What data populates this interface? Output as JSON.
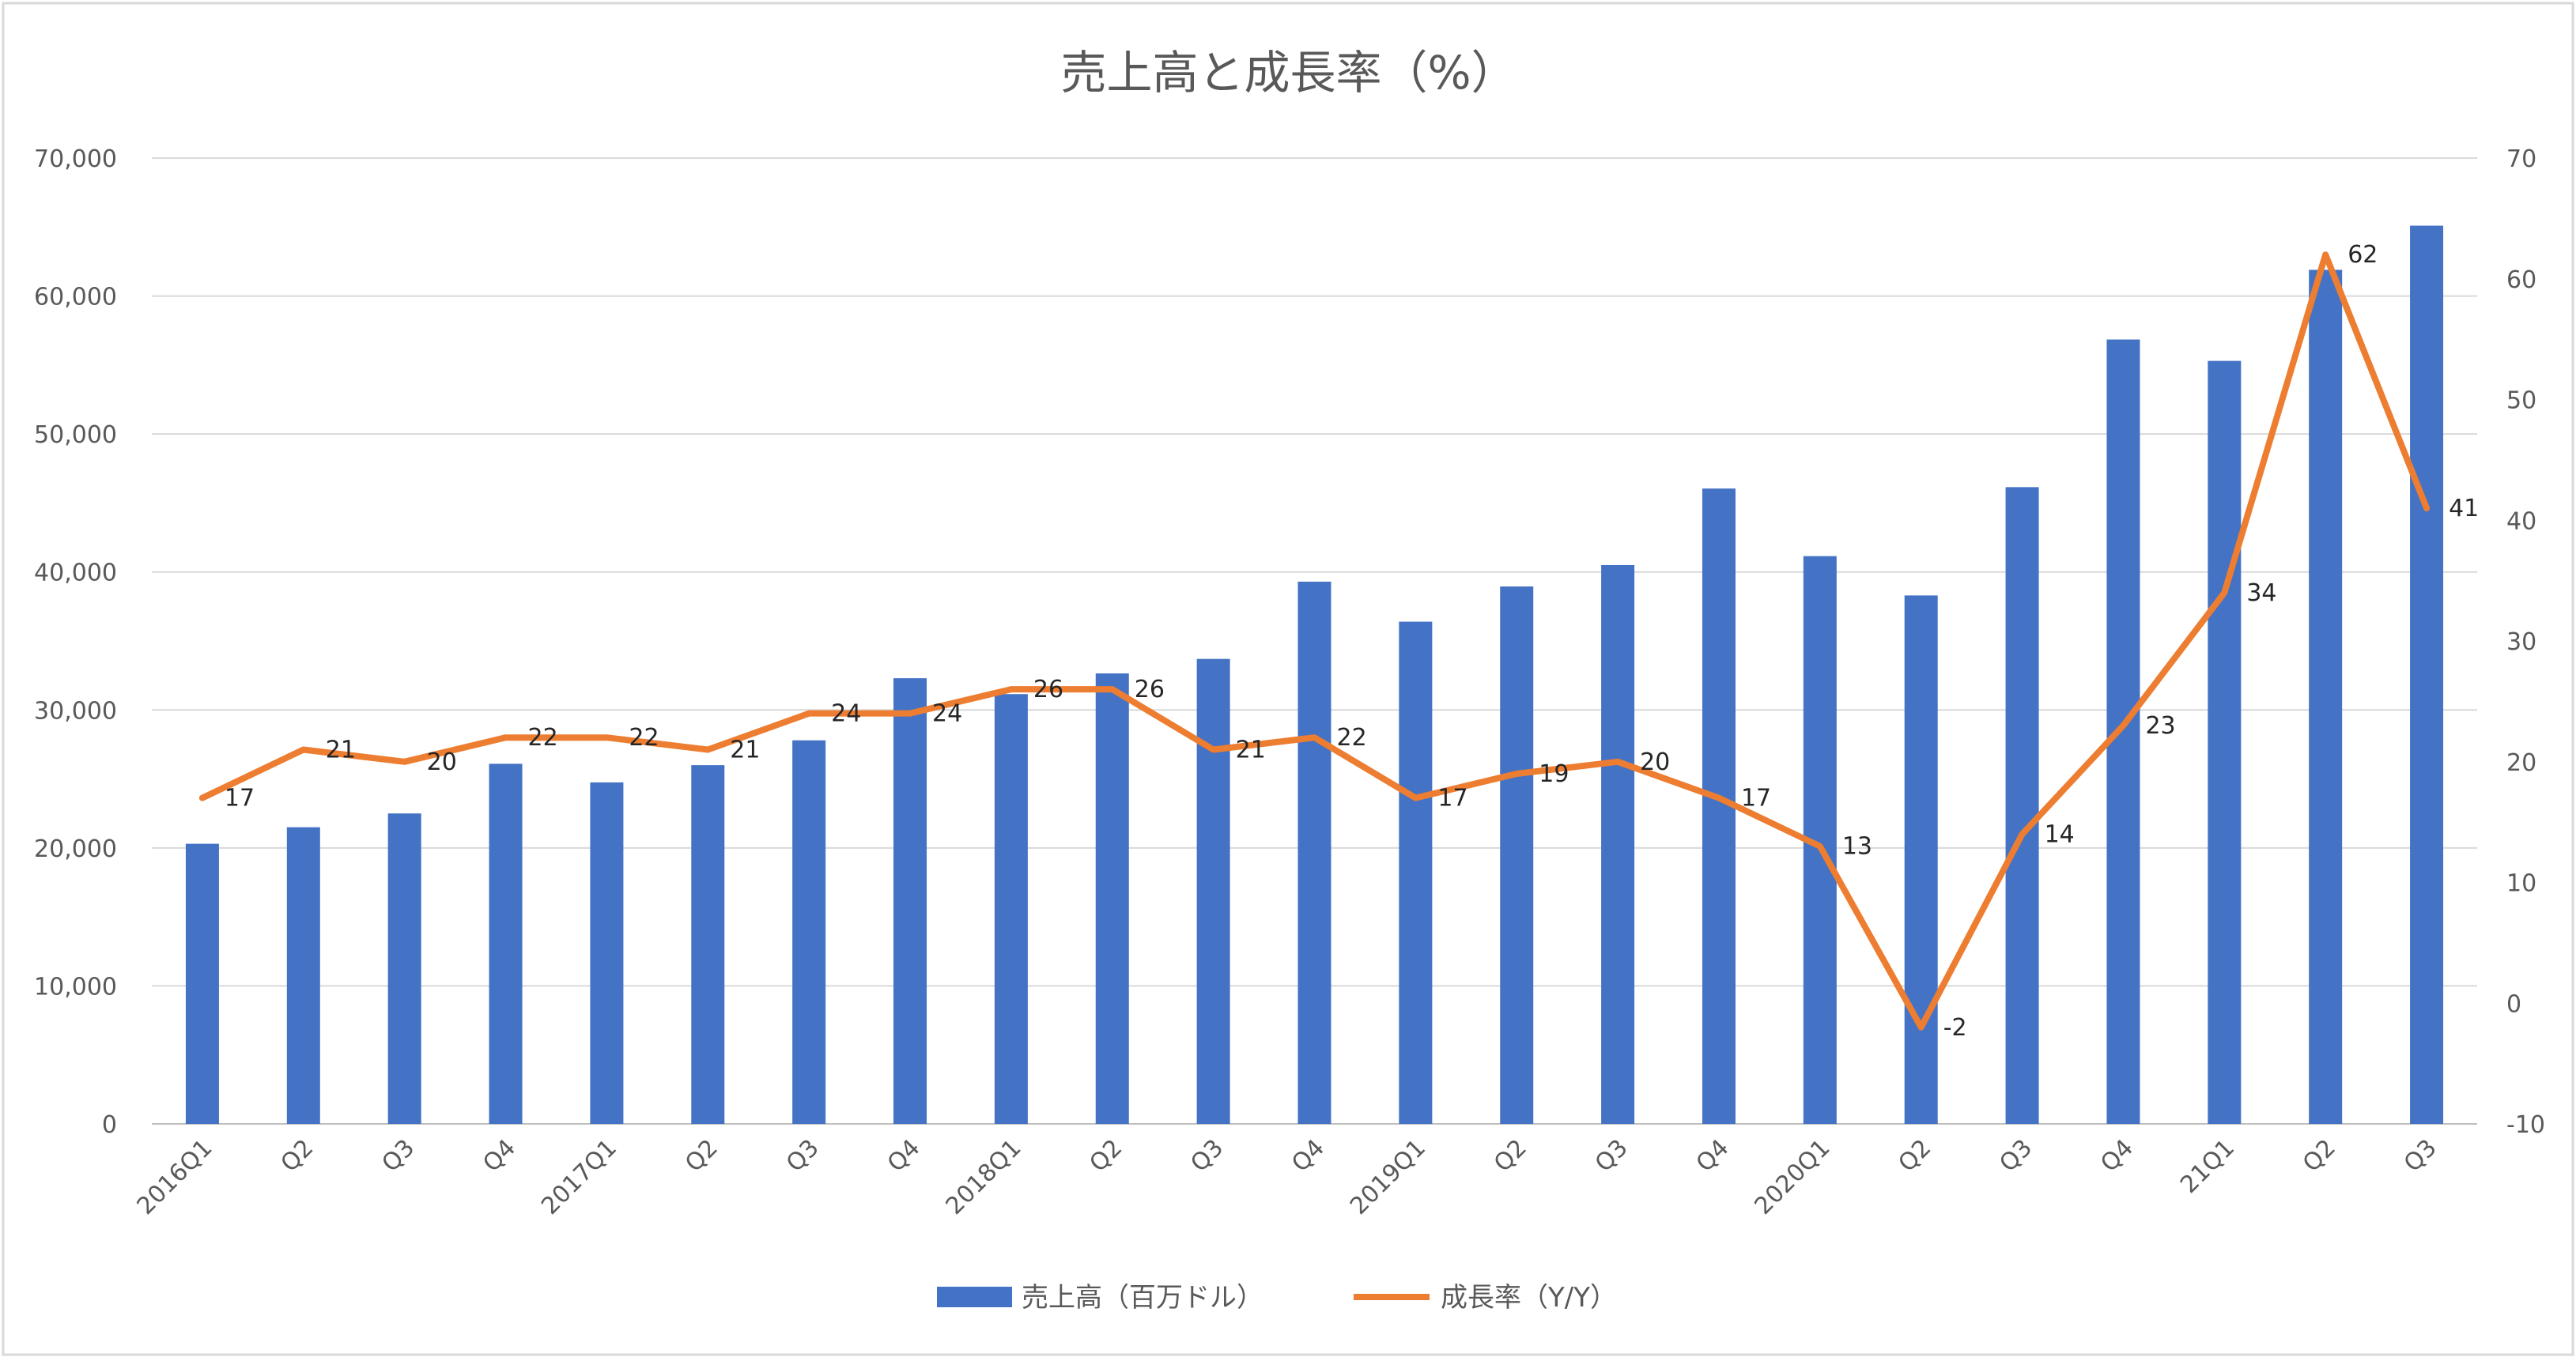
{
  "chart_data": {
    "type": "bar",
    "title": "売上高と成長率（%）",
    "categories": [
      "2016Q1",
      "Q2",
      "Q3",
      "Q4",
      "2017Q1",
      "Q2",
      "Q3",
      "Q4",
      "2018Q1",
      "Q2",
      "Q3",
      "Q4",
      "2019Q1",
      "Q2",
      "Q3",
      "Q4",
      "2020Q1",
      "Q2",
      "Q3",
      "Q4",
      "21Q1",
      "Q2",
      "Q3"
    ],
    "series": [
      {
        "name": "売上高（百万ドル）",
        "type": "bar",
        "axis": "left",
        "color": "#4472C4",
        "values": [
          20300,
          21500,
          22500,
          26100,
          24750,
          26000,
          27800,
          32300,
          31150,
          32650,
          33700,
          39300,
          36400,
          38950,
          40500,
          46050,
          41150,
          38300,
          46150,
          56850,
          55300,
          61900,
          65100
        ]
      },
      {
        "name": "成長率（Y/Y）",
        "type": "line",
        "axis": "right",
        "color": "#ED7D31",
        "values": [
          17,
          21,
          20,
          22,
          22,
          21,
          24,
          24,
          26,
          26,
          21,
          22,
          17,
          19,
          20,
          17,
          13,
          -2,
          14,
          23,
          34,
          62,
          41
        ],
        "labels": [
          "17",
          "21",
          "20",
          "22",
          "22",
          "21",
          "24",
          "24",
          "26",
          "26",
          "21",
          "22",
          "17",
          "19",
          "20",
          "17",
          "13",
          "-2",
          "14",
          "23",
          "34",
          "62",
          "41"
        ]
      }
    ],
    "y_left": {
      "min": 0,
      "max": 70000,
      "step": 10000,
      "tick_labels": [
        "0",
        "10,000",
        "20,000",
        "30,000",
        "40,000",
        "50,000",
        "60,000",
        "70,000"
      ]
    },
    "y_right": {
      "min": -10,
      "max": 70,
      "step": 10,
      "tick_labels": [
        "-10",
        "0",
        "10",
        "20",
        "30",
        "40",
        "50",
        "60",
        "70"
      ]
    },
    "grid": true,
    "legend_position": "bottom"
  },
  "legend": {
    "bar_label": "売上高（百万ドル）",
    "line_label": "成長率（Y/Y）"
  }
}
